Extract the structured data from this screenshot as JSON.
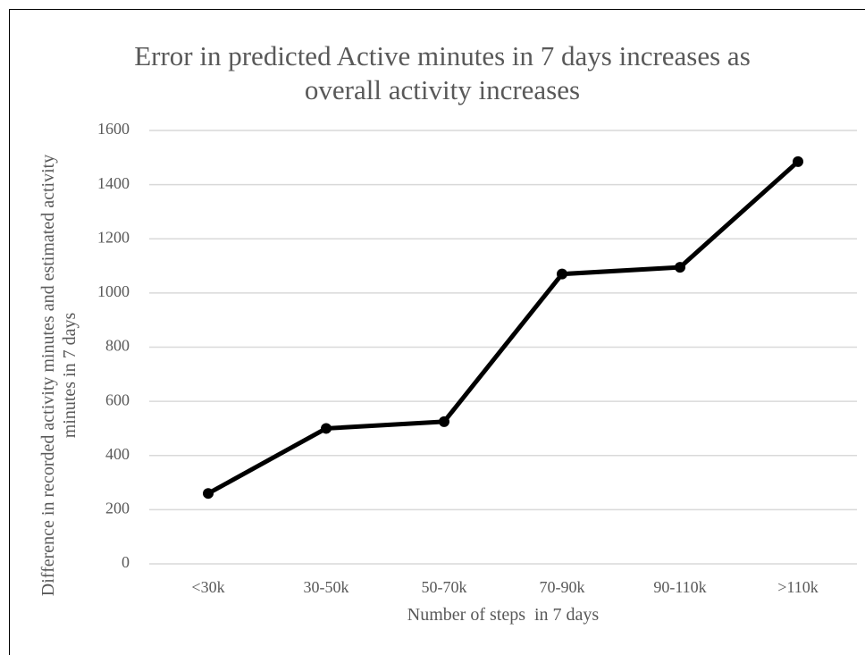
{
  "chart_data": {
    "type": "line",
    "title": "Error in predicted Active minutes in 7 days increases as overall activity increases",
    "x_label": "Number of steps  in 7 days",
    "y_label": "Difference in recorded activity minutes and estimated activity minutes in 7 days",
    "categories": [
      "<30k",
      "30-50k",
      "50-70k",
      "70-90k",
      "90-110k",
      ">110k"
    ],
    "values": [
      260,
      500,
      525,
      1070,
      1095,
      1485
    ],
    "color": "#000000",
    "ylim": [
      0,
      1600
    ],
    "yticks": [
      0,
      200,
      400,
      600,
      800,
      1000,
      1200,
      1400,
      1600
    ],
    "grid": true
  }
}
